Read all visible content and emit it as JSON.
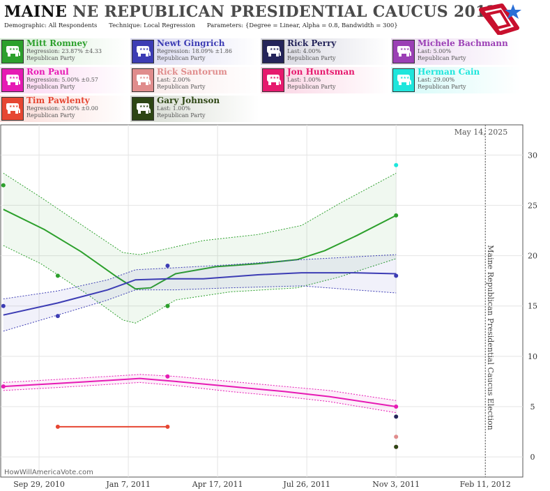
{
  "header": {
    "state": "MAINE",
    "title_rest": "NE REPUBLICAN PRESIDENTIAL CAUCUS 2012",
    "demographic_label": "Demographic:",
    "demographic_value": "All Respondents",
    "technique_label": "Technique:",
    "technique_value": "Local Regression",
    "parameters_label": "Parameters:",
    "parameters_value": "{Degree = Linear, Alpha = 0.8, Bandwidth = 300}"
  },
  "legend": [
    {
      "name": "Mitt Romney",
      "stat": "Regression: 23.87% ±4.33",
      "party": "Republican Party",
      "color": "#2ca02c"
    },
    {
      "name": "Newt Gingrich",
      "stat": "Regression: 18.09% ±1.86",
      "party": "Republican Party",
      "color": "#3c3cb4"
    },
    {
      "name": "Rick Perry",
      "stat": "Last: 4.00%",
      "party": "Republican Party",
      "color": "#24245a"
    },
    {
      "name": "Michele Bachmann",
      "stat": "Last: 5.00%",
      "party": "Republican Party",
      "color": "#9b3fb5"
    },
    {
      "name": "Ron Paul",
      "stat": "Regression: 5.00% ±0.57",
      "party": "Republican Party",
      "color": "#e61ab4"
    },
    {
      "name": "Rick Santorum",
      "stat": "Last: 2.00%",
      "party": "Republican Party",
      "color": "#e08c8c"
    },
    {
      "name": "Jon Huntsman",
      "stat": "Last: 1.00%",
      "party": "Republican Party",
      "color": "#e6196e"
    },
    {
      "name": "Herman Cain",
      "stat": "Last: 29.00%",
      "party": "Republican Party",
      "color": "#1ee6dc"
    },
    {
      "name": "Tim Pawlenty",
      "stat": "Regression: 3.00% ±0.00",
      "party": "Republican Party",
      "color": "#e64632"
    },
    {
      "name": "Gary Johnson",
      "stat": "Last: 1.00%",
      "party": "Republican Party",
      "color": "#2d4614"
    }
  ],
  "chart_data": {
    "type": "line",
    "x_tick_labels": [
      "Sep 29, 2010",
      "Jan 7, 2011",
      "Apr 17, 2011",
      "Jul 26, 2011",
      "Nov 3, 2011",
      "Feb 11, 2012"
    ],
    "x_ticks": [
      "2010-09-29",
      "2011-01-07",
      "2011-04-17",
      "2011-07-26",
      "2011-11-03",
      "2012-02-11"
    ],
    "xlim": [
      "2010-08-17",
      "2012-03-24"
    ],
    "ylim": [
      -2,
      33
    ],
    "y_ticks": [
      0,
      5,
      10,
      15,
      20,
      25,
      30
    ],
    "y_axis_side": "right",
    "grid": true,
    "election_date": "2012-02-11",
    "election_label": "Maine Republican Presidential Caucus Election",
    "current_date_label": "May 14, 2025",
    "credit": "HowWillAmericaVote.com",
    "series": [
      {
        "name": "Mitt Romney",
        "color": "#2ca02c",
        "points": [
          [
            "2010-08-20",
            27
          ],
          [
            "2010-10-20",
            18
          ],
          [
            "2011-02-20",
            15
          ],
          [
            "2011-02-20",
            15
          ],
          [
            "2011-11-03",
            24
          ]
        ],
        "trend": [
          [
            "2010-08-20",
            24.6
          ],
          [
            "2010-10-05",
            22.6
          ],
          [
            "2010-11-15",
            20.4
          ],
          [
            "2010-12-25",
            17.9
          ],
          [
            "2011-01-15",
            16.7
          ],
          [
            "2011-02-01",
            16.8
          ],
          [
            "2011-03-01",
            18.2
          ],
          [
            "2011-04-15",
            18.9
          ],
          [
            "2011-06-01",
            19.2
          ],
          [
            "2011-07-15",
            19.6
          ],
          [
            "2011-08-15",
            20.5
          ],
          [
            "2011-09-20",
            22.0
          ],
          [
            "2011-11-03",
            24.0
          ]
        ],
        "upper": [
          [
            "2010-08-20",
            28.2
          ],
          [
            "2010-10-01",
            25.8
          ],
          [
            "2010-11-20",
            22.8
          ],
          [
            "2011-01-01",
            20.3
          ],
          [
            "2011-01-20",
            20.1
          ],
          [
            "2011-02-15",
            20.6
          ],
          [
            "2011-04-01",
            21.5
          ],
          [
            "2011-06-01",
            22.1
          ],
          [
            "2011-07-20",
            23.0
          ],
          [
            "2011-09-01",
            25.2
          ],
          [
            "2011-11-03",
            28.2
          ]
        ],
        "lower": [
          [
            "2010-08-20",
            21.0
          ],
          [
            "2010-10-01",
            19.2
          ],
          [
            "2010-11-20",
            16.3
          ],
          [
            "2011-01-01",
            13.6
          ],
          [
            "2011-01-15",
            13.3
          ],
          [
            "2011-02-05",
            14.3
          ],
          [
            "2011-03-01",
            15.6
          ],
          [
            "2011-05-01",
            16.4
          ],
          [
            "2011-07-15",
            16.8
          ],
          [
            "2011-09-01",
            17.9
          ],
          [
            "2011-11-03",
            19.7
          ]
        ]
      },
      {
        "name": "Newt Gingrich",
        "color": "#3c3cb4",
        "points": [
          [
            "2010-08-20",
            15
          ],
          [
            "2010-10-20",
            14
          ],
          [
            "2011-02-20",
            19
          ],
          [
            "2011-11-03",
            18
          ]
        ],
        "trend": [
          [
            "2010-08-20",
            14.1
          ],
          [
            "2010-10-20",
            15.3
          ],
          [
            "2010-12-15",
            16.6
          ],
          [
            "2011-01-15",
            17.6
          ],
          [
            "2011-02-20",
            17.7
          ],
          [
            "2011-04-01",
            17.7
          ],
          [
            "2011-06-01",
            18.1
          ],
          [
            "2011-07-20",
            18.3
          ],
          [
            "2011-09-15",
            18.3
          ],
          [
            "2011-11-03",
            18.2
          ]
        ],
        "upper": [
          [
            "2010-08-20",
            15.7
          ],
          [
            "2010-10-20",
            16.5
          ],
          [
            "2010-12-15",
            17.6
          ],
          [
            "2011-01-15",
            18.6
          ],
          [
            "2011-03-01",
            18.8
          ],
          [
            "2011-05-01",
            19.1
          ],
          [
            "2011-07-20",
            19.6
          ],
          [
            "2011-11-03",
            20.1
          ]
        ],
        "lower": [
          [
            "2010-08-20",
            12.5
          ],
          [
            "2010-10-20",
            14.1
          ],
          [
            "2010-12-15",
            15.6
          ],
          [
            "2011-01-15",
            16.6
          ],
          [
            "2011-03-01",
            16.6
          ],
          [
            "2011-05-01",
            16.8
          ],
          [
            "2011-07-20",
            17.0
          ],
          [
            "2011-11-03",
            16.3
          ]
        ]
      },
      {
        "name": "Ron Paul",
        "color": "#e61ab4",
        "points": [
          [
            "2010-08-20",
            7
          ],
          [
            "2011-02-20",
            8
          ],
          [
            "2011-11-03",
            5
          ]
        ],
        "trend": [
          [
            "2010-08-20",
            7.0
          ],
          [
            "2010-10-20",
            7.3
          ],
          [
            "2010-12-15",
            7.6
          ],
          [
            "2011-01-20",
            7.8
          ],
          [
            "2011-03-01",
            7.5
          ],
          [
            "2011-05-01",
            7.0
          ],
          [
            "2011-07-01",
            6.5
          ],
          [
            "2011-08-20",
            6.0
          ],
          [
            "2011-11-03",
            5.0
          ]
        ],
        "upper": [
          [
            "2010-08-20",
            7.4
          ],
          [
            "2010-10-20",
            7.7
          ],
          [
            "2010-12-15",
            8.0
          ],
          [
            "2011-01-20",
            8.2
          ],
          [
            "2011-03-01",
            8.0
          ],
          [
            "2011-05-01",
            7.5
          ],
          [
            "2011-07-01",
            7.0
          ],
          [
            "2011-08-20",
            6.6
          ],
          [
            "2011-11-03",
            5.6
          ]
        ],
        "lower": [
          [
            "2010-08-20",
            6.6
          ],
          [
            "2010-10-20",
            6.9
          ],
          [
            "2010-12-15",
            7.2
          ],
          [
            "2011-01-20",
            7.4
          ],
          [
            "2011-03-01",
            7.1
          ],
          [
            "2011-05-01",
            6.5
          ],
          [
            "2011-07-01",
            6.0
          ],
          [
            "2011-08-20",
            5.5
          ],
          [
            "2011-11-03",
            4.4
          ]
        ]
      },
      {
        "name": "Tim Pawlenty",
        "color": "#e64632",
        "points": [
          [
            "2010-10-20",
            3
          ],
          [
            "2011-02-20",
            3
          ]
        ],
        "trend": [
          [
            "2010-10-20",
            3
          ],
          [
            "2011-02-20",
            3
          ]
        ]
      },
      {
        "name": "Herman Cain",
        "color": "#1ee6dc",
        "points": [
          [
            "2011-11-03",
            29
          ]
        ]
      },
      {
        "name": "Rick Perry",
        "color": "#24245a",
        "points": [
          [
            "2011-11-03",
            4
          ]
        ]
      },
      {
        "name": "Rick Santorum",
        "color": "#e08c8c",
        "points": [
          [
            "2011-11-03",
            2
          ]
        ]
      },
      {
        "name": "Jon Huntsman",
        "color": "#e6196e",
        "points": [
          [
            "2011-11-03",
            1
          ]
        ]
      },
      {
        "name": "Gary Johnson",
        "color": "#2d4614",
        "points": [
          [
            "2011-11-03",
            1
          ]
        ]
      }
    ]
  }
}
